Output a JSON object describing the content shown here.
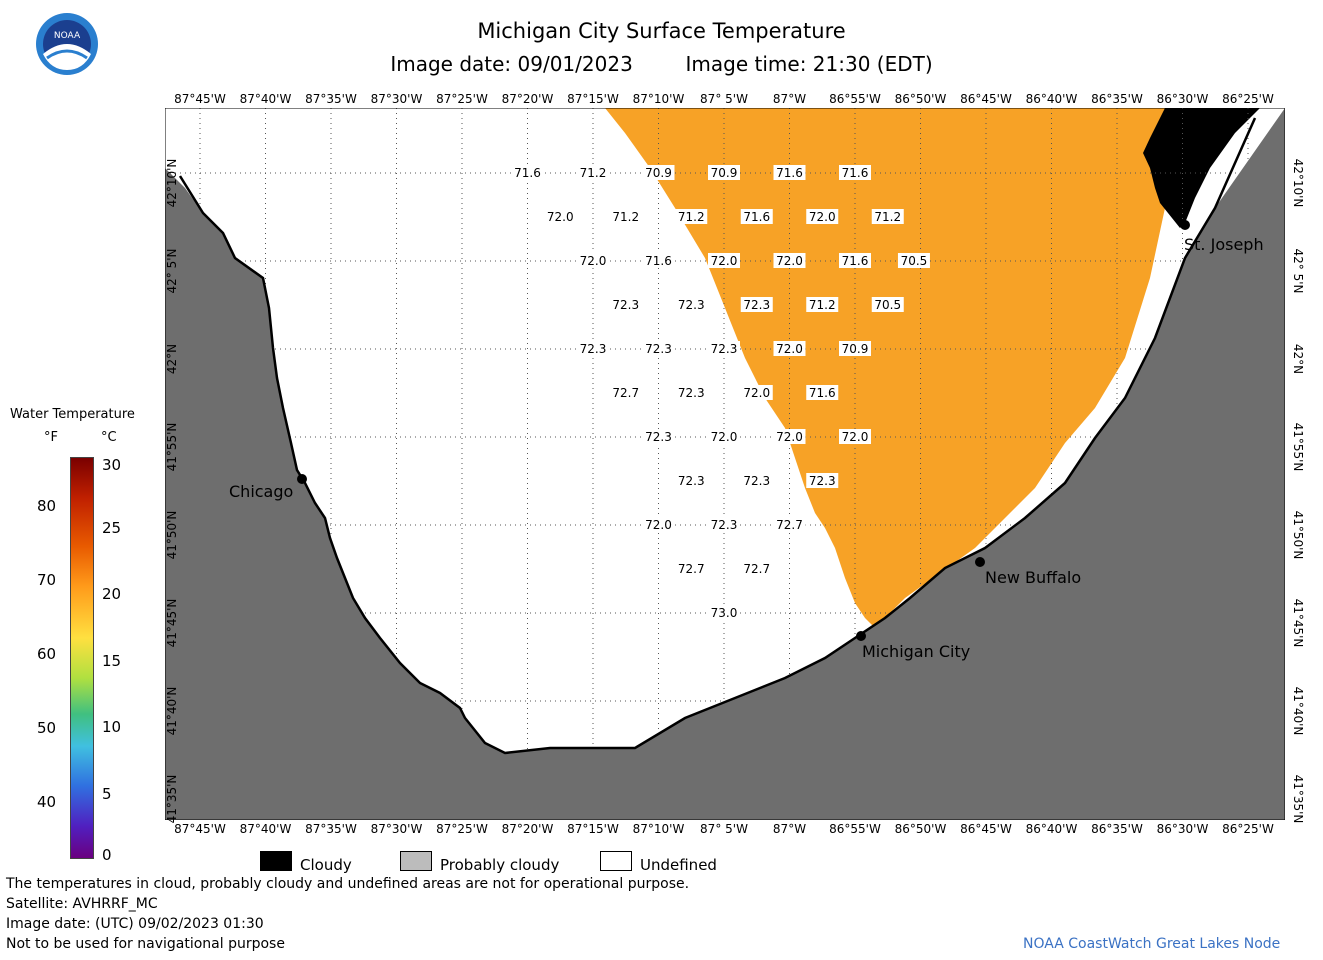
{
  "header": {
    "title": "Michigan City Surface Temperature",
    "image_date_label": "Image date: 09/01/2023",
    "image_time_label": "Image time: 21:30 (EDT)"
  },
  "logo": {
    "text": "NOAA"
  },
  "map": {
    "lon_labels": [
      "87°45'W",
      "87°40'W",
      "87°35'W",
      "87°30'W",
      "87°25'W",
      "87°20'W",
      "87°15'W",
      "87°10'W",
      "87° 5'W",
      "87°W",
      "86°55'W",
      "86°50'W",
      "86°45'W",
      "86°40'W",
      "86°35'W",
      "86°30'W",
      "86°25'W"
    ],
    "lat_labels": [
      "42°10'N",
      "42° 5'N",
      "42°N",
      "41°55'N",
      "41°50'N",
      "41°45'N",
      "41°40'N",
      "41°35'N"
    ],
    "cities": [
      {
        "name": "Chicago"
      },
      {
        "name": "Michigan City"
      },
      {
        "name": "New Buffalo"
      },
      {
        "name": "St. Joseph"
      }
    ],
    "temperatures": [
      {
        "v": "71.6",
        "c": 8,
        "r": 0.5
      },
      {
        "v": "71.2",
        "c": 9,
        "r": 0.5
      },
      {
        "v": "70.9",
        "c": 10,
        "r": 0.5
      },
      {
        "v": "70.9",
        "c": 11,
        "r": 0.5
      },
      {
        "v": "71.6",
        "c": 12,
        "r": 0.5
      },
      {
        "v": "71.6",
        "c": 13,
        "r": 0.5
      },
      {
        "v": "72.0",
        "c": 8.5,
        "r": 1
      },
      {
        "v": "71.2",
        "c": 9.5,
        "r": 1
      },
      {
        "v": "71.2",
        "c": 10.5,
        "r": 1
      },
      {
        "v": "71.6",
        "c": 11.5,
        "r": 1
      },
      {
        "v": "72.0",
        "c": 12.5,
        "r": 1
      },
      {
        "v": "71.2",
        "c": 13.5,
        "r": 1
      },
      {
        "v": "72.0",
        "c": 9,
        "r": 1.5
      },
      {
        "v": "71.6",
        "c": 10,
        "r": 1.5
      },
      {
        "v": "72.0",
        "c": 11,
        "r": 1.5
      },
      {
        "v": "72.0",
        "c": 12,
        "r": 1.5
      },
      {
        "v": "71.6",
        "c": 13,
        "r": 1.5
      },
      {
        "v": "70.5",
        "c": 13.9,
        "r": 1.5
      },
      {
        "v": "72.3",
        "c": 9.5,
        "r": 2
      },
      {
        "v": "72.3",
        "c": 10.5,
        "r": 2
      },
      {
        "v": "72.3",
        "c": 11.5,
        "r": 2
      },
      {
        "v": "71.2",
        "c": 12.5,
        "r": 2
      },
      {
        "v": "70.5",
        "c": 13.5,
        "r": 2
      },
      {
        "v": "72.3",
        "c": 9,
        "r": 2.5
      },
      {
        "v": "72.3",
        "c": 10,
        "r": 2.5
      },
      {
        "v": "72.3",
        "c": 11,
        "r": 2.5
      },
      {
        "v": "72.0",
        "c": 12,
        "r": 2.5
      },
      {
        "v": "70.9",
        "c": 13,
        "r": 2.5
      },
      {
        "v": "72.7",
        "c": 9.5,
        "r": 3
      },
      {
        "v": "72.3",
        "c": 10.5,
        "r": 3
      },
      {
        "v": "72.0",
        "c": 11.5,
        "r": 3
      },
      {
        "v": "71.6",
        "c": 12.5,
        "r": 3
      },
      {
        "v": "72.3",
        "c": 10,
        "r": 3.5
      },
      {
        "v": "72.0",
        "c": 11,
        "r": 3.5
      },
      {
        "v": "72.0",
        "c": 12,
        "r": 3.5
      },
      {
        "v": "72.0",
        "c": 13,
        "r": 3.5
      },
      {
        "v": "72.3",
        "c": 10.5,
        "r": 4
      },
      {
        "v": "72.3",
        "c": 11.5,
        "r": 4
      },
      {
        "v": "72.3",
        "c": 12.5,
        "r": 4
      },
      {
        "v": "72.0",
        "c": 10,
        "r": 4.5
      },
      {
        "v": "72.3",
        "c": 11,
        "r": 4.5
      },
      {
        "v": "72.7",
        "c": 12,
        "r": 4.5
      },
      {
        "v": "72.7",
        "c": 10.5,
        "r": 5
      },
      {
        "v": "72.7",
        "c": 11.5,
        "r": 5
      },
      {
        "v": "73.0",
        "c": 11,
        "r": 5.5
      }
    ],
    "colors": {
      "land": "#6e6e6e",
      "water_temp": "#f7a226",
      "cloud": "#000000",
      "undefined": "#ffffff"
    }
  },
  "colorbar": {
    "title": "Water Temperature",
    "unit_f": "°F",
    "unit_c": "°C",
    "f_ticks": [
      "80",
      "70",
      "60",
      "50",
      "40"
    ],
    "c_ticks": [
      "30",
      "25",
      "20",
      "15",
      "10",
      "5",
      "0"
    ]
  },
  "legend": {
    "cloudy": "Cloudy",
    "probably_cloudy": "Probably cloudy",
    "undefined": "Undefined"
  },
  "footer": {
    "line1": "The temperatures in cloud, probably cloudy and undefined areas are not for operational purpose.",
    "line2": "Satellite: AVHRRF_MC",
    "line3": "Image date: (UTC) 09/02/2023  01:30",
    "line4": "Not to be used for navigational purpose",
    "credit": "NOAA CoastWatch Great Lakes Node"
  }
}
